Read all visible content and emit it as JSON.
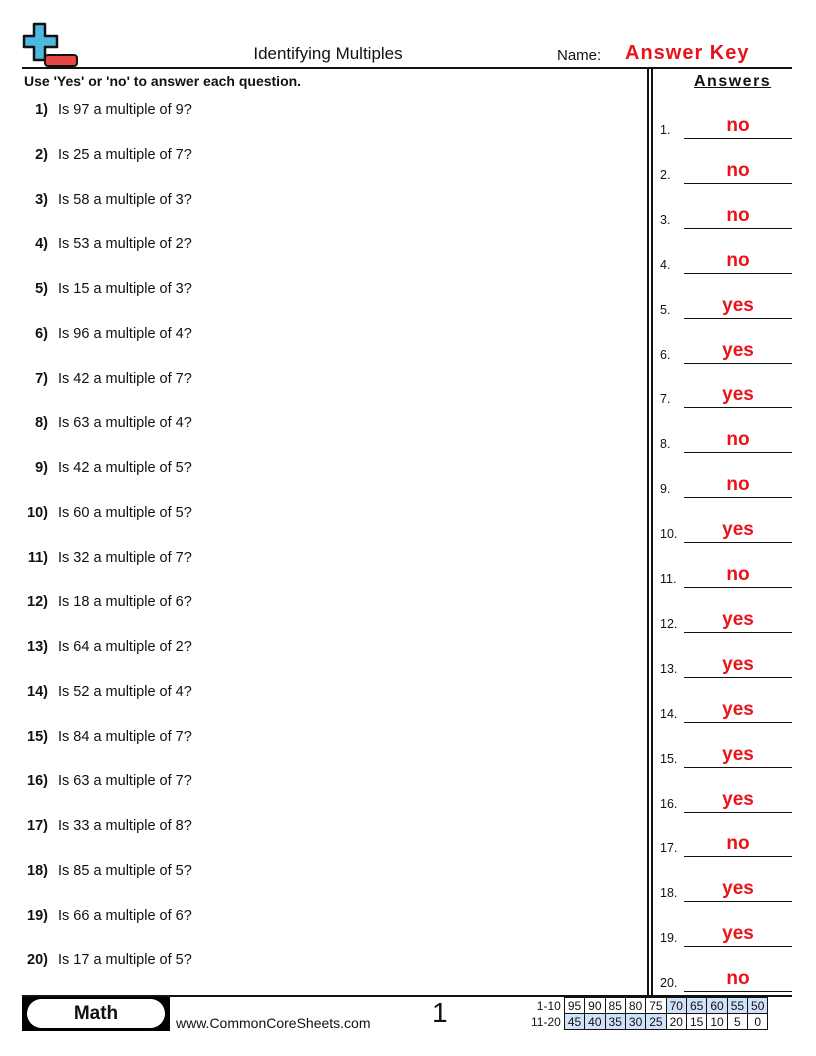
{
  "header": {
    "title": "Identifying Multiples",
    "name_label": "Name:",
    "name_value": "Answer Key",
    "logo_colors": {
      "plus": "#4db8e0",
      "minus": "#e84545"
    }
  },
  "instructions": "Use 'Yes' or 'no' to answer each question.",
  "answers_heading": "Answers",
  "questions": [
    {
      "num": "1)",
      "text": "Is 97 a multiple of 9?"
    },
    {
      "num": "2)",
      "text": "Is 25 a multiple of 7?"
    },
    {
      "num": "3)",
      "text": "Is 58 a multiple of 3?"
    },
    {
      "num": "4)",
      "text": "Is 53 a multiple of 2?"
    },
    {
      "num": "5)",
      "text": "Is 15 a multiple of 3?"
    },
    {
      "num": "6)",
      "text": "Is 96 a multiple of 4?"
    },
    {
      "num": "7)",
      "text": "Is 42 a multiple of 7?"
    },
    {
      "num": "8)",
      "text": "Is 63 a multiple of 4?"
    },
    {
      "num": "9)",
      "text": "Is 42 a multiple of 5?"
    },
    {
      "num": "10)",
      "text": "Is 60 a multiple of 5?"
    },
    {
      "num": "11)",
      "text": "Is 32 a multiple of 7?"
    },
    {
      "num": "12)",
      "text": "Is 18 a multiple of 6?"
    },
    {
      "num": "13)",
      "text": "Is 64 a multiple of 2?"
    },
    {
      "num": "14)",
      "text": "Is 52 a multiple of 4?"
    },
    {
      "num": "15)",
      "text": "Is 84 a multiple of 7?"
    },
    {
      "num": "16)",
      "text": "Is 63 a multiple of 7?"
    },
    {
      "num": "17)",
      "text": "Is 33 a multiple of 8?"
    },
    {
      "num": "18)",
      "text": "Is 85 a multiple of 5?"
    },
    {
      "num": "19)",
      "text": "Is 66 a multiple of 6?"
    },
    {
      "num": "20)",
      "text": "Is 17 a multiple of 5?"
    }
  ],
  "answers": [
    {
      "num": "1.",
      "value": "no"
    },
    {
      "num": "2.",
      "value": "no"
    },
    {
      "num": "3.",
      "value": "no"
    },
    {
      "num": "4.",
      "value": "no"
    },
    {
      "num": "5.",
      "value": "yes"
    },
    {
      "num": "6.",
      "value": "yes"
    },
    {
      "num": "7.",
      "value": "yes"
    },
    {
      "num": "8.",
      "value": "no"
    },
    {
      "num": "9.",
      "value": "no"
    },
    {
      "num": "10.",
      "value": "yes"
    },
    {
      "num": "11.",
      "value": "no"
    },
    {
      "num": "12.",
      "value": "yes"
    },
    {
      "num": "13.",
      "value": "yes"
    },
    {
      "num": "14.",
      "value": "yes"
    },
    {
      "num": "15.",
      "value": "yes"
    },
    {
      "num": "16.",
      "value": "yes"
    },
    {
      "num": "17.",
      "value": "no"
    },
    {
      "num": "18.",
      "value": "yes"
    },
    {
      "num": "19.",
      "value": "yes"
    },
    {
      "num": "20.",
      "value": "no"
    }
  ],
  "answer_color": "#e8141a",
  "footer": {
    "subject": "Math",
    "website": "www.CommonCoreSheets.com",
    "page_number": "1",
    "score_rows": [
      {
        "label": "1-10",
        "values": [
          "95",
          "90",
          "85",
          "80",
          "75",
          "70",
          "65",
          "60",
          "55",
          "50"
        ],
        "highlighted": [
          false,
          false,
          false,
          false,
          false,
          true,
          true,
          true,
          true,
          true
        ]
      },
      {
        "label": "11-20",
        "values": [
          "45",
          "40",
          "35",
          "30",
          "25",
          "20",
          "15",
          "10",
          "5",
          "0"
        ],
        "highlighted": [
          true,
          true,
          true,
          true,
          true,
          false,
          false,
          false,
          false,
          false
        ]
      }
    ]
  }
}
